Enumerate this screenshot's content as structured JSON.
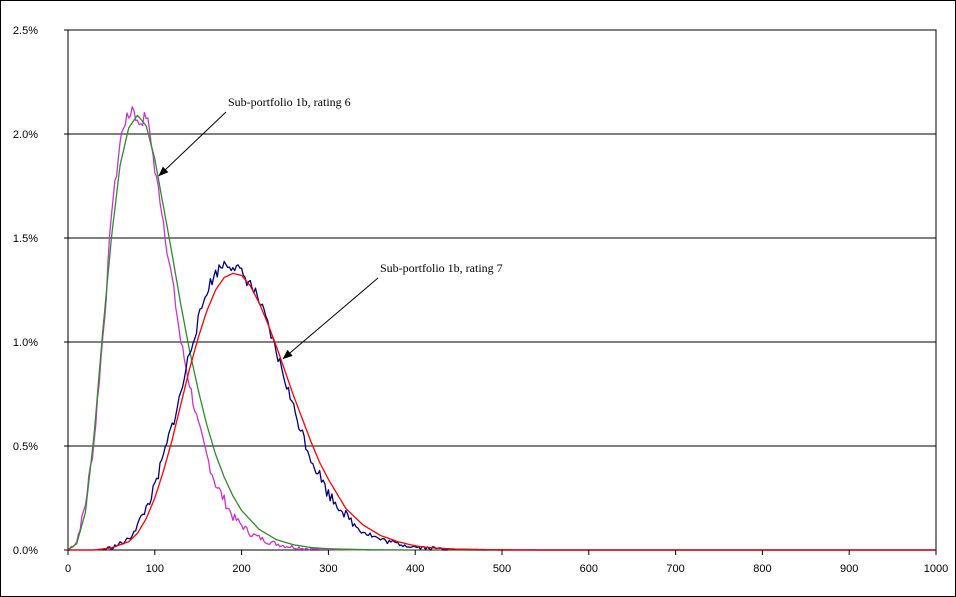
{
  "chart_data": {
    "type": "line",
    "title": "",
    "xlabel": "",
    "ylabel": "",
    "xlim": [
      0,
      1000
    ],
    "ylim": [
      0,
      2.5
    ],
    "x_ticks": [
      0,
      100,
      200,
      300,
      400,
      500,
      600,
      700,
      800,
      900,
      1000
    ],
    "x_tick_labels": [
      "0",
      "100",
      "200",
      "300",
      "400",
      "500",
      "600",
      "700",
      "800",
      "900",
      "1000"
    ],
    "y_ticks": [
      0,
      0.5,
      1.0,
      1.5,
      2.0,
      2.5
    ],
    "y_tick_labels": [
      "0.0%",
      "0.5%",
      "1.0%",
      "1.5%",
      "2.0%",
      "2.5%"
    ],
    "y_unit": "%",
    "grid": {
      "horizontal": true,
      "vertical": false
    },
    "legend": "none",
    "series": [
      {
        "color": "#cc33cc",
        "style": "noisy",
        "x": [
          0,
          10,
          20,
          30,
          40,
          45,
          50,
          55,
          60,
          65,
          70,
          75,
          80,
          85,
          90,
          95,
          100,
          105,
          110,
          115,
          120,
          125,
          130,
          140,
          150,
          160,
          170,
          180,
          190,
          200,
          210,
          220,
          230,
          240,
          250,
          260,
          280,
          300,
          350,
          400,
          1000
        ],
        "y": [
          0.0,
          0.04,
          0.22,
          0.52,
          1.02,
          1.28,
          1.63,
          1.78,
          1.96,
          2.06,
          2.08,
          2.14,
          2.05,
          2.06,
          2.09,
          2.0,
          1.82,
          1.72,
          1.58,
          1.42,
          1.3,
          1.15,
          1.0,
          0.8,
          0.6,
          0.45,
          0.32,
          0.24,
          0.16,
          0.12,
          0.08,
          0.06,
          0.04,
          0.03,
          0.02,
          0.015,
          0.005,
          0.002,
          0.0,
          0.0,
          0.0
        ]
      },
      {
        "color": "#2e8b2e",
        "style": "smooth",
        "x": [
          0,
          10,
          20,
          30,
          40,
          50,
          60,
          70,
          80,
          90,
          100,
          110,
          120,
          130,
          140,
          150,
          160,
          170,
          180,
          190,
          200,
          220,
          240,
          260,
          280,
          300,
          350,
          400,
          500,
          1000
        ],
        "y": [
          0.0,
          0.03,
          0.18,
          0.55,
          1.05,
          1.5,
          1.85,
          2.03,
          2.09,
          2.04,
          1.88,
          1.65,
          1.42,
          1.18,
          0.96,
          0.77,
          0.6,
          0.46,
          0.35,
          0.26,
          0.19,
          0.1,
          0.05,
          0.025,
          0.012,
          0.006,
          0.001,
          0.0,
          0.0,
          0.0
        ]
      },
      {
        "color": "#000080",
        "style": "noisy",
        "x": [
          0,
          30,
          50,
          70,
          80,
          90,
          100,
          110,
          120,
          130,
          140,
          150,
          160,
          170,
          180,
          190,
          200,
          210,
          220,
          230,
          240,
          250,
          260,
          270,
          280,
          290,
          300,
          310,
          320,
          330,
          340,
          350,
          360,
          380,
          400,
          420,
          450,
          500,
          1000
        ],
        "y": [
          0.0,
          0.0,
          0.01,
          0.05,
          0.12,
          0.2,
          0.3,
          0.45,
          0.6,
          0.75,
          0.95,
          1.1,
          1.25,
          1.33,
          1.38,
          1.37,
          1.33,
          1.28,
          1.2,
          1.08,
          0.95,
          0.82,
          0.68,
          0.56,
          0.44,
          0.36,
          0.27,
          0.22,
          0.17,
          0.12,
          0.09,
          0.07,
          0.05,
          0.03,
          0.015,
          0.008,
          0.003,
          0.0,
          0.0
        ]
      },
      {
        "color": "#ff0000",
        "style": "smooth",
        "x": [
          0,
          30,
          50,
          70,
          80,
          90,
          100,
          110,
          120,
          130,
          140,
          150,
          160,
          170,
          180,
          190,
          200,
          210,
          220,
          230,
          240,
          250,
          260,
          270,
          280,
          290,
          300,
          320,
          340,
          360,
          380,
          400,
          420,
          450,
          500,
          550,
          1000
        ],
        "y": [
          0.0,
          0.0,
          0.01,
          0.04,
          0.08,
          0.15,
          0.25,
          0.38,
          0.53,
          0.7,
          0.87,
          1.02,
          1.15,
          1.25,
          1.31,
          1.33,
          1.32,
          1.27,
          1.19,
          1.09,
          0.98,
          0.86,
          0.74,
          0.63,
          0.52,
          0.42,
          0.34,
          0.2,
          0.12,
          0.07,
          0.04,
          0.02,
          0.01,
          0.004,
          0.001,
          0.0,
          0.0
        ]
      }
    ],
    "annotations": [
      {
        "text": "Sub-portfolio 1b, rating 6",
        "anchor_x": 105,
        "anchor_y": 1.8
      },
      {
        "text": "Sub-portfolio 1b, rating 7",
        "anchor_x": 248,
        "anchor_y": 0.92
      }
    ]
  }
}
